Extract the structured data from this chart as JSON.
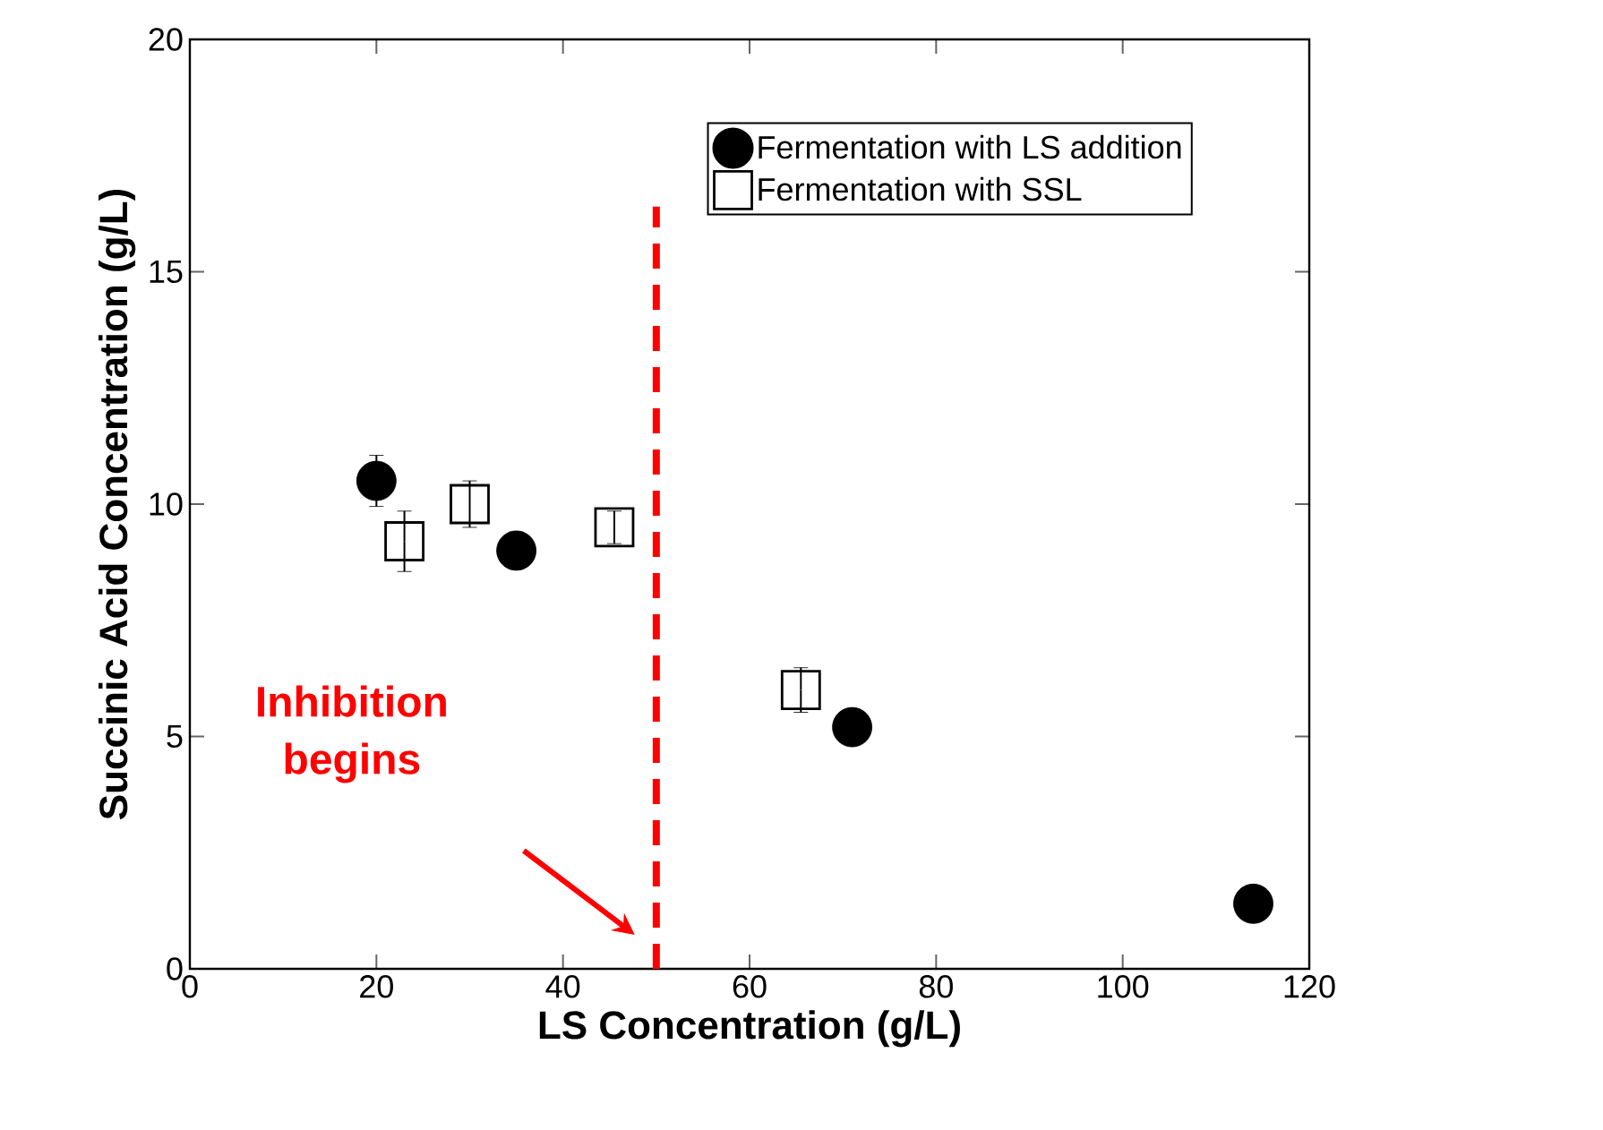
{
  "chart_data": {
    "type": "scatter",
    "xlabel": "LS Concentration (g/L)",
    "ylabel": "Succinic Acid Concentration (g/L)",
    "series": [
      {
        "name": "Fermentation with LS addition",
        "color": "#000000",
        "marker": "circle",
        "x": [
          20,
          35,
          71,
          114
        ],
        "values": [
          10.5,
          9.0,
          5.2,
          1.4
        ],
        "errors": [
          0.55,
          0.4,
          null,
          null
        ]
      },
      {
        "name": "Fermentation with SSL",
        "color": "#000000",
        "marker": "square",
        "x": [
          23,
          30,
          45.5,
          65.5
        ],
        "values": [
          9.2,
          10.0,
          9.5,
          6.0
        ],
        "errors": [
          0.65,
          0.5,
          0.35,
          0.48
        ]
      }
    ],
    "xlim": [
      0,
      120
    ],
    "xticks": [
      0,
      20,
      40,
      60,
      80,
      100,
      120
    ],
    "ylim": [
      0,
      20
    ],
    "yticks": [
      0,
      5,
      10,
      15,
      20
    ],
    "ref_lines": [
      {
        "axis": "x",
        "value": 50,
        "label": "Inhibition begins",
        "color": "#ff0000",
        "line_style": "dashed"
      }
    ],
    "legend": "top right"
  }
}
